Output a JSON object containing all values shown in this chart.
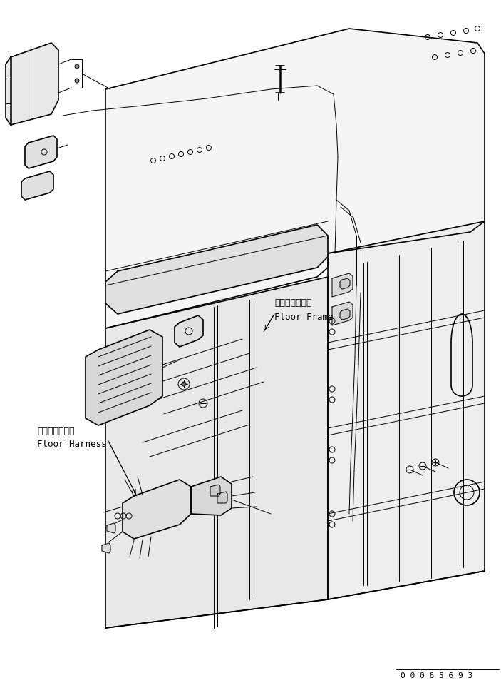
{
  "bg_color": "#ffffff",
  "line_color": "#000000",
  "fig_width": 7.03,
  "fig_height": 9.57,
  "dpi": 100,
  "part_number": "0 0 0 6 5 6 9 3",
  "label_floor_frame_jp": "フロアフレーム",
  "label_floor_frame_en": "Floor Frame",
  "label_floor_harness_jp": "フロアハーネス",
  "label_floor_harness_en": "Floor Harness",
  "annotation_font_size": 8,
  "part_number_font_size": 8
}
